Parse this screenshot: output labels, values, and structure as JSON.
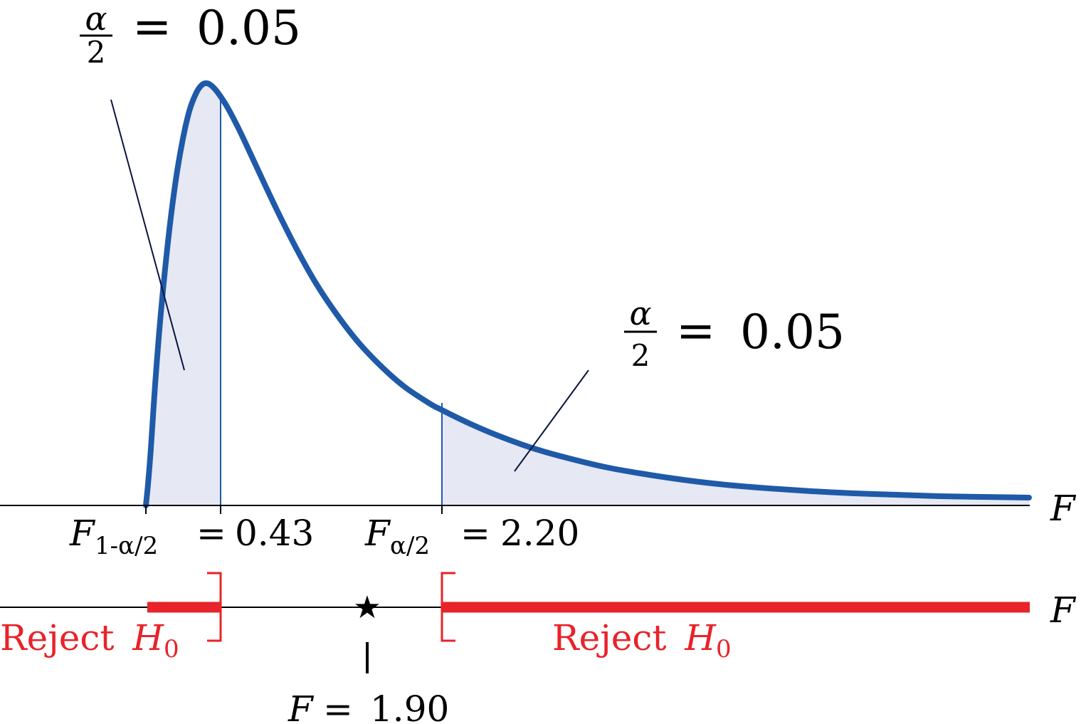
{
  "colors": {
    "curve": "#1f5aa8",
    "tail_fill": "#e6e8f4",
    "reject": "#e8232a",
    "axis": "#000000",
    "leader": "#0a1440"
  },
  "top_alpha_label": {
    "numerator": "α",
    "denominator": "2",
    "equals": "=",
    "value": "0.05"
  },
  "right_alpha_label": {
    "numerator": "α",
    "denominator": "2",
    "equals": "=",
    "value": "0.05"
  },
  "axis_label_top": "F",
  "axis_label_bottom": "F",
  "lower_critical": {
    "symbol": "F",
    "subscript": "1-α/2",
    "equals": "=",
    "value": "0.43"
  },
  "upper_critical": {
    "symbol": "F",
    "subscript": "α/2",
    "equals": "=",
    "value": "2.20"
  },
  "reject_left": {
    "text": "Reject",
    "symbol": "H",
    "subscript": "0"
  },
  "reject_right": {
    "text": "Reject",
    "symbol": "H",
    "subscript": "0"
  },
  "test_statistic": {
    "marker": "★",
    "symbol": "F",
    "equals": "=",
    "value": "1.90"
  }
}
